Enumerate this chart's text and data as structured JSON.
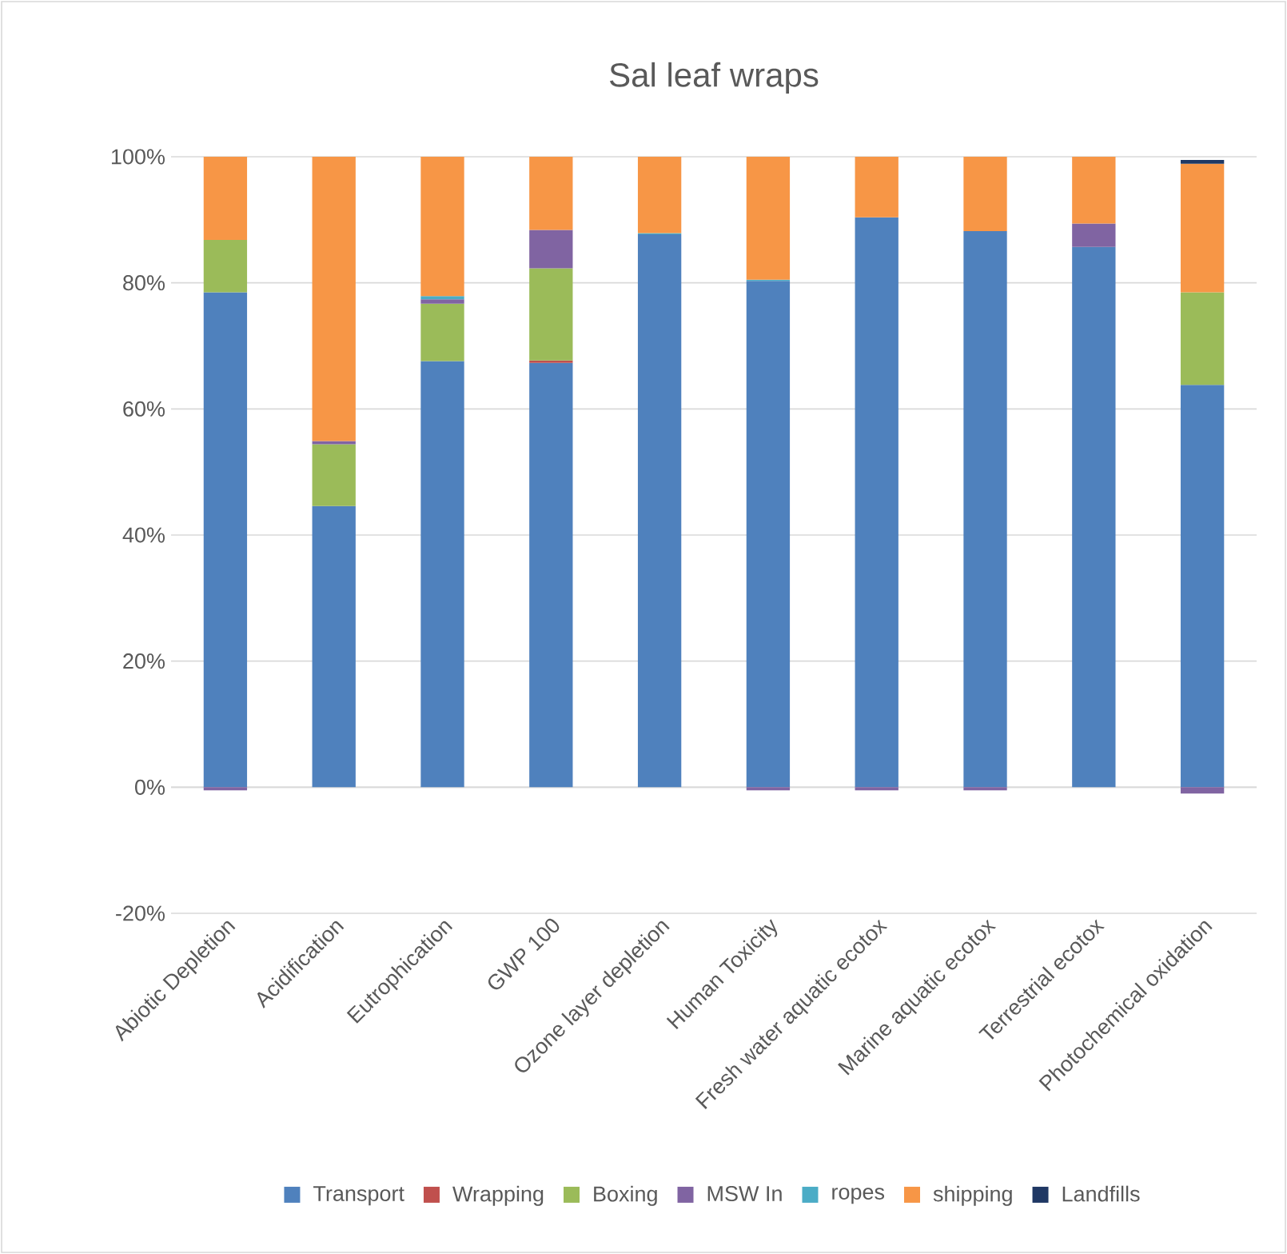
{
  "chart_data": {
    "type": "bar",
    "stacked": true,
    "title": "Sal leaf wraps",
    "categories": [
      "Abiotic Depletion",
      "Acidification",
      "Eutrophication",
      "GWP 100",
      "Ozone layer depletion",
      "Human Toxicity",
      "Fresh water aquatic ecotox",
      "Marine aquatic ecotox",
      "Terrestrial ecotox",
      "Photochemical oxidation"
    ],
    "series": [
      {
        "name": "Transport",
        "color": "#4f81bd",
        "values": [
          78.5,
          44.6,
          67.6,
          67.3,
          87.7,
          80.3,
          90.4,
          88.2,
          85.7,
          63.8
        ]
      },
      {
        "name": "Wrapping",
        "color": "#c0504d",
        "values": [
          null,
          null,
          null,
          0.4,
          null,
          null,
          null,
          null,
          null,
          null
        ]
      },
      {
        "name": "Boxing",
        "color": "#9bbb59",
        "values": [
          8.3,
          9.8,
          9.1,
          14.6,
          null,
          null,
          null,
          null,
          null,
          14.7
        ]
      },
      {
        "name": "MSW In",
        "color": "#8064a2",
        "values": [
          -0.5,
          0.5,
          0.7,
          6.1,
          null,
          -0.5,
          -0.5,
          -0.5,
          3.7,
          -1.0
        ]
      },
      {
        "name": "ropes",
        "color": "#4bacc6",
        "values": [
          null,
          null,
          0.5,
          null,
          0.2,
          0.2,
          null,
          null,
          null,
          null
        ]
      },
      {
        "name": "shipping",
        "color": "#f79646",
        "values": [
          13.2,
          45.1,
          22.1,
          11.6,
          12.1,
          19.5,
          9.6,
          11.8,
          10.6,
          20.4
        ]
      },
      {
        "name": "Landfills",
        "color": "#1f3864",
        "values": [
          null,
          null,
          null,
          null,
          null,
          null,
          null,
          null,
          null,
          0.6
        ]
      }
    ],
    "ylim": [
      -20,
      100
    ],
    "yticks": [
      {
        "value": -20,
        "label": "-20%"
      },
      {
        "value": 0,
        "label": "0%"
      },
      {
        "value": 20,
        "label": "20%"
      },
      {
        "value": 40,
        "label": "40%"
      },
      {
        "value": 60,
        "label": "60%"
      },
      {
        "value": 80,
        "label": "80%"
      },
      {
        "value": 100,
        "label": "100%"
      }
    ],
    "grid": "y",
    "legend": "bottom"
  }
}
